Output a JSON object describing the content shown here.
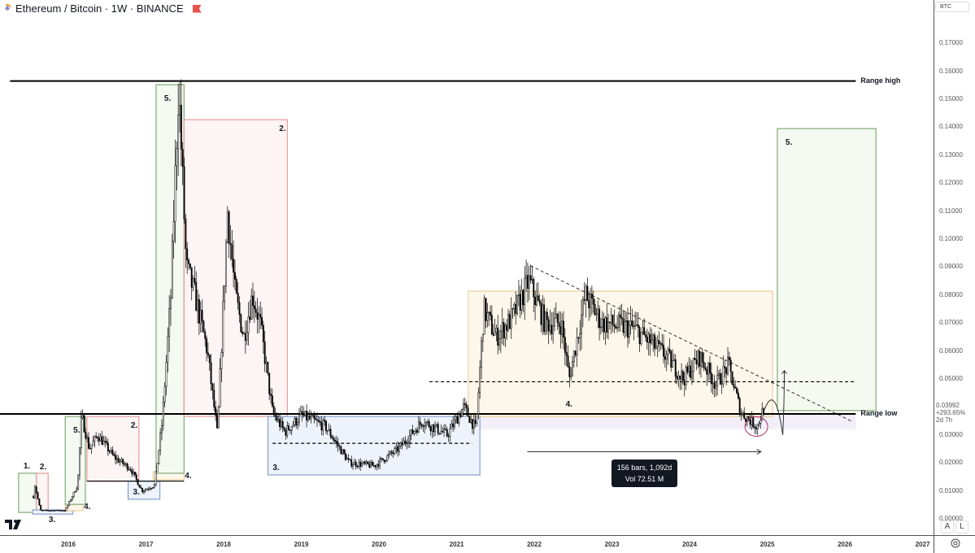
{
  "header": {
    "title": "Ethereum / Bitcoin · 1W · BINANCE",
    "currency_button": "BTC"
  },
  "price_label": {
    "price": "0.03992",
    "change": "+293.65%",
    "countdown": "2d 7h"
  },
  "measure_tooltip": {
    "line1": "156 bars, 1,092d",
    "line2": "Vol 72.51 M"
  },
  "axis_buttons": {
    "auto": "A",
    "log": "L"
  },
  "icons": {
    "settings": "target-icon",
    "logo": "tradingview-logo",
    "alert": "flag-icon"
  },
  "colors": {
    "candle": "#000000",
    "green_box": "#6a9a5b",
    "red_box": "#e08a8a",
    "blue_box": "#6f8fc4",
    "yellow_box": "#e8c88a",
    "purple_zone": "#ede8f7"
  },
  "chart_data": {
    "type": "candlestick",
    "title": "Ethereum / Bitcoin · 1W · BINANCE",
    "ylim": [
      0,
      0.175
    ],
    "y_ticks": [
      "0.17000",
      "0.16000",
      "0.15000",
      "0.14000",
      "0.13000",
      "0.12000",
      "0.11000",
      "0.10000",
      "0.09000",
      "0.08000",
      "0.07000",
      "0.06000",
      "0.05000",
      "0.03000",
      "0.02000",
      "0.01000",
      "0.00000"
    ],
    "y_tick_values": [
      0.17,
      0.16,
      0.15,
      0.14,
      0.13,
      0.12,
      0.11,
      0.1,
      0.09,
      0.08,
      0.07,
      0.06,
      0.05,
      0.03,
      0.02,
      0.01,
      0.0
    ],
    "x_ticks": [
      "2016",
      "2017",
      "2018",
      "2019",
      "2020",
      "2021",
      "2022",
      "2023",
      "2024",
      "2025",
      "2026",
      "2027"
    ],
    "price_path": [
      [
        2015.55,
        0.008
      ],
      [
        2015.57,
        0.012
      ],
      [
        2015.64,
        0.003
      ],
      [
        2015.96,
        0.003
      ],
      [
        2016.12,
        0.012
      ],
      [
        2016.17,
        0.037
      ],
      [
        2016.27,
        0.025
      ],
      [
        2016.38,
        0.03
      ],
      [
        2016.59,
        0.022
      ],
      [
        2016.8,
        0.018
      ],
      [
        2016.95,
        0.01
      ],
      [
        2017.11,
        0.012
      ],
      [
        2017.21,
        0.035
      ],
      [
        2017.32,
        0.08
      ],
      [
        2017.42,
        0.155
      ],
      [
        2017.52,
        0.09
      ],
      [
        2017.63,
        0.08
      ],
      [
        2017.79,
        0.06
      ],
      [
        2017.92,
        0.03
      ],
      [
        2018.05,
        0.11
      ],
      [
        2018.15,
        0.08
      ],
      [
        2018.26,
        0.065
      ],
      [
        2018.37,
        0.08
      ],
      [
        2018.47,
        0.07
      ],
      [
        2018.63,
        0.038
      ],
      [
        2018.79,
        0.031
      ],
      [
        2019.0,
        0.037
      ],
      [
        2019.31,
        0.033
      ],
      [
        2019.62,
        0.02
      ],
      [
        2019.94,
        0.019
      ],
      [
        2020.25,
        0.025
      ],
      [
        2020.56,
        0.035
      ],
      [
        2020.88,
        0.03
      ],
      [
        2021.09,
        0.04
      ],
      [
        2021.25,
        0.032
      ],
      [
        2021.35,
        0.075
      ],
      [
        2021.51,
        0.065
      ],
      [
        2021.72,
        0.072
      ],
      [
        2021.93,
        0.085
      ],
      [
        2022.14,
        0.07
      ],
      [
        2022.35,
        0.07
      ],
      [
        2022.45,
        0.05
      ],
      [
        2022.66,
        0.08
      ],
      [
        2022.87,
        0.07
      ],
      [
        2023.29,
        0.068
      ],
      [
        2023.71,
        0.058
      ],
      [
        2023.92,
        0.05
      ],
      [
        2024.13,
        0.058
      ],
      [
        2024.34,
        0.048
      ],
      [
        2024.5,
        0.055
      ],
      [
        2024.66,
        0.038
      ],
      [
        2024.87,
        0.033
      ],
      [
        2024.96,
        0.03992
      ]
    ],
    "horizontal_lines": [
      {
        "label": "Range high",
        "price": 0.1565,
        "from": 2015.25,
        "to": 2026.14,
        "style": "solid"
      },
      {
        "label": "Range low",
        "price": 0.0375,
        "from": 2015.12,
        "to": 2026.14,
        "style": "solid"
      },
      {
        "label": "",
        "price": 0.049,
        "from": 2020.65,
        "to": 2026.14,
        "style": "dashed"
      },
      {
        "label": "",
        "price": 0.027,
        "from": 2018.63,
        "to": 2021.2,
        "style": "dashed"
      },
      {
        "label": "",
        "price": 0.0135,
        "from": 2016.24,
        "to": 2017.49,
        "style": "solid"
      }
    ],
    "trendline": {
      "from": [
        2021.95,
        0.0905
      ],
      "to": [
        2026.08,
        0.035
      ],
      "style": "dashed"
    },
    "date_range_arrow": {
      "from": 2021.91,
      "to": 2024.92,
      "price": 0.024
    },
    "boxes": [
      {
        "label": "1.",
        "color": "green",
        "x0": 2015.36,
        "x1": 2015.59,
        "y0": 0.0023,
        "y1": 0.0163
      },
      {
        "label": "2.",
        "color": "red",
        "x0": 2015.59,
        "x1": 2015.74,
        "y0": 0.0023,
        "y1": 0.0163
      },
      {
        "label": "3.",
        "color": "blue",
        "x0": 2015.54,
        "x1": 2016.06,
        "y0": 0.0017,
        "y1": 0.0032
      },
      {
        "label": "4.",
        "color": "yellow",
        "x0": 2015.96,
        "x1": 2016.19,
        "y0": 0.0029,
        "y1": 0.0052
      },
      {
        "label": "5.",
        "color": "green",
        "x0": 2015.96,
        "x1": 2016.22,
        "y0": 0.0052,
        "y1": 0.0366
      },
      {
        "label": "2.",
        "color": "red",
        "x0": 2016.24,
        "x1": 2016.91,
        "y0": 0.0134,
        "y1": 0.0366
      },
      {
        "label": "3.",
        "color": "blue",
        "x0": 2016.77,
        "x1": 2017.18,
        "y0": 0.007,
        "y1": 0.0134
      },
      {
        "label": "4.",
        "color": "yellow",
        "x0": 2017.09,
        "x1": 2017.49,
        "y0": 0.014,
        "y1": 0.0169
      },
      {
        "label": "5.",
        "color": "green",
        "x0": 2017.13,
        "x1": 2017.49,
        "y0": 0.0163,
        "y1": 0.1552
      },
      {
        "label": "2.",
        "color": "red",
        "x0": 2017.49,
        "x1": 2018.82,
        "y0": 0.0366,
        "y1": 0.1427
      },
      {
        "label": "3.",
        "color": "blue",
        "x0": 2018.57,
        "x1": 2021.3,
        "y0": 0.0157,
        "y1": 0.0366
      },
      {
        "label": "4.",
        "color": "yellow",
        "x0": 2021.15,
        "x1": 2025.07,
        "y0": 0.0366,
        "y1": 0.0814
      },
      {
        "label": "5.",
        "color": "green",
        "x0": 2025.13,
        "x1": 2026.4,
        "y0": 0.0387,
        "y1": 0.1395
      }
    ]
  }
}
